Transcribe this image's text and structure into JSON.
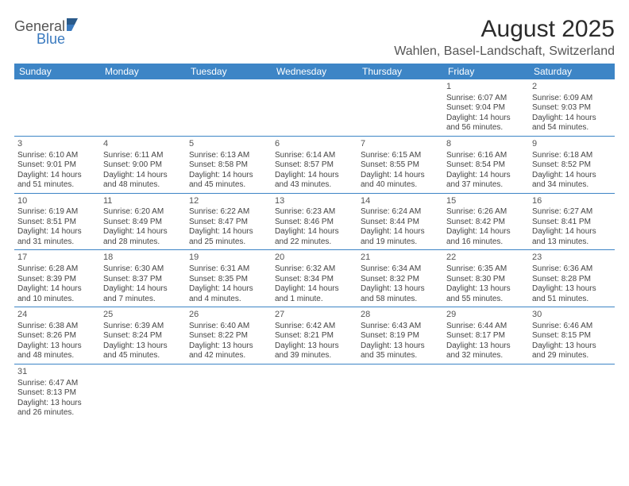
{
  "brand": {
    "general": "General",
    "blue": "Blue"
  },
  "title": "August 2025",
  "location": "Wahlen, Basel-Landschaft, Switzerland",
  "colors": {
    "header_bg": "#3d85c6",
    "header_text": "#ffffff",
    "rule": "#3d85c6",
    "text": "#444444",
    "title": "#2b2b2b",
    "logo_blue": "#3a7abf",
    "logo_dark": "#2a5a8a"
  },
  "calendar": {
    "type": "table",
    "day_headers": [
      "Sunday",
      "Monday",
      "Tuesday",
      "Wednesday",
      "Thursday",
      "Friday",
      "Saturday"
    ],
    "weeks": [
      [
        {
          "day": "",
          "lines": [
            "",
            "",
            "",
            ""
          ]
        },
        {
          "day": "",
          "lines": [
            "",
            "",
            "",
            ""
          ]
        },
        {
          "day": "",
          "lines": [
            "",
            "",
            "",
            ""
          ]
        },
        {
          "day": "",
          "lines": [
            "",
            "",
            "",
            ""
          ]
        },
        {
          "day": "",
          "lines": [
            "",
            "",
            "",
            ""
          ]
        },
        {
          "day": "1",
          "lines": [
            "Sunrise: 6:07 AM",
            "Sunset: 9:04 PM",
            "Daylight: 14 hours",
            "and 56 minutes."
          ]
        },
        {
          "day": "2",
          "lines": [
            "Sunrise: 6:09 AM",
            "Sunset: 9:03 PM",
            "Daylight: 14 hours",
            "and 54 minutes."
          ]
        }
      ],
      [
        {
          "day": "3",
          "lines": [
            "Sunrise: 6:10 AM",
            "Sunset: 9:01 PM",
            "Daylight: 14 hours",
            "and 51 minutes."
          ]
        },
        {
          "day": "4",
          "lines": [
            "Sunrise: 6:11 AM",
            "Sunset: 9:00 PM",
            "Daylight: 14 hours",
            "and 48 minutes."
          ]
        },
        {
          "day": "5",
          "lines": [
            "Sunrise: 6:13 AM",
            "Sunset: 8:58 PM",
            "Daylight: 14 hours",
            "and 45 minutes."
          ]
        },
        {
          "day": "6",
          "lines": [
            "Sunrise: 6:14 AM",
            "Sunset: 8:57 PM",
            "Daylight: 14 hours",
            "and 43 minutes."
          ]
        },
        {
          "day": "7",
          "lines": [
            "Sunrise: 6:15 AM",
            "Sunset: 8:55 PM",
            "Daylight: 14 hours",
            "and 40 minutes."
          ]
        },
        {
          "day": "8",
          "lines": [
            "Sunrise: 6:16 AM",
            "Sunset: 8:54 PM",
            "Daylight: 14 hours",
            "and 37 minutes."
          ]
        },
        {
          "day": "9",
          "lines": [
            "Sunrise: 6:18 AM",
            "Sunset: 8:52 PM",
            "Daylight: 14 hours",
            "and 34 minutes."
          ]
        }
      ],
      [
        {
          "day": "10",
          "lines": [
            "Sunrise: 6:19 AM",
            "Sunset: 8:51 PM",
            "Daylight: 14 hours",
            "and 31 minutes."
          ]
        },
        {
          "day": "11",
          "lines": [
            "Sunrise: 6:20 AM",
            "Sunset: 8:49 PM",
            "Daylight: 14 hours",
            "and 28 minutes."
          ]
        },
        {
          "day": "12",
          "lines": [
            "Sunrise: 6:22 AM",
            "Sunset: 8:47 PM",
            "Daylight: 14 hours",
            "and 25 minutes."
          ]
        },
        {
          "day": "13",
          "lines": [
            "Sunrise: 6:23 AM",
            "Sunset: 8:46 PM",
            "Daylight: 14 hours",
            "and 22 minutes."
          ]
        },
        {
          "day": "14",
          "lines": [
            "Sunrise: 6:24 AM",
            "Sunset: 8:44 PM",
            "Daylight: 14 hours",
            "and 19 minutes."
          ]
        },
        {
          "day": "15",
          "lines": [
            "Sunrise: 6:26 AM",
            "Sunset: 8:42 PM",
            "Daylight: 14 hours",
            "and 16 minutes."
          ]
        },
        {
          "day": "16",
          "lines": [
            "Sunrise: 6:27 AM",
            "Sunset: 8:41 PM",
            "Daylight: 14 hours",
            "and 13 minutes."
          ]
        }
      ],
      [
        {
          "day": "17",
          "lines": [
            "Sunrise: 6:28 AM",
            "Sunset: 8:39 PM",
            "Daylight: 14 hours",
            "and 10 minutes."
          ]
        },
        {
          "day": "18",
          "lines": [
            "Sunrise: 6:30 AM",
            "Sunset: 8:37 PM",
            "Daylight: 14 hours",
            "and 7 minutes."
          ]
        },
        {
          "day": "19",
          "lines": [
            "Sunrise: 6:31 AM",
            "Sunset: 8:35 PM",
            "Daylight: 14 hours",
            "and 4 minutes."
          ]
        },
        {
          "day": "20",
          "lines": [
            "Sunrise: 6:32 AM",
            "Sunset: 8:34 PM",
            "Daylight: 14 hours",
            "and 1 minute."
          ]
        },
        {
          "day": "21",
          "lines": [
            "Sunrise: 6:34 AM",
            "Sunset: 8:32 PM",
            "Daylight: 13 hours",
            "and 58 minutes."
          ]
        },
        {
          "day": "22",
          "lines": [
            "Sunrise: 6:35 AM",
            "Sunset: 8:30 PM",
            "Daylight: 13 hours",
            "and 55 minutes."
          ]
        },
        {
          "day": "23",
          "lines": [
            "Sunrise: 6:36 AM",
            "Sunset: 8:28 PM",
            "Daylight: 13 hours",
            "and 51 minutes."
          ]
        }
      ],
      [
        {
          "day": "24",
          "lines": [
            "Sunrise: 6:38 AM",
            "Sunset: 8:26 PM",
            "Daylight: 13 hours",
            "and 48 minutes."
          ]
        },
        {
          "day": "25",
          "lines": [
            "Sunrise: 6:39 AM",
            "Sunset: 8:24 PM",
            "Daylight: 13 hours",
            "and 45 minutes."
          ]
        },
        {
          "day": "26",
          "lines": [
            "Sunrise: 6:40 AM",
            "Sunset: 8:22 PM",
            "Daylight: 13 hours",
            "and 42 minutes."
          ]
        },
        {
          "day": "27",
          "lines": [
            "Sunrise: 6:42 AM",
            "Sunset: 8:21 PM",
            "Daylight: 13 hours",
            "and 39 minutes."
          ]
        },
        {
          "day": "28",
          "lines": [
            "Sunrise: 6:43 AM",
            "Sunset: 8:19 PM",
            "Daylight: 13 hours",
            "and 35 minutes."
          ]
        },
        {
          "day": "29",
          "lines": [
            "Sunrise: 6:44 AM",
            "Sunset: 8:17 PM",
            "Daylight: 13 hours",
            "and 32 minutes."
          ]
        },
        {
          "day": "30",
          "lines": [
            "Sunrise: 6:46 AM",
            "Sunset: 8:15 PM",
            "Daylight: 13 hours",
            "and 29 minutes."
          ]
        }
      ],
      [
        {
          "day": "31",
          "lines": [
            "Sunrise: 6:47 AM",
            "Sunset: 8:13 PM",
            "Daylight: 13 hours",
            "and 26 minutes."
          ]
        },
        {
          "day": "",
          "lines": [
            "",
            "",
            "",
            ""
          ]
        },
        {
          "day": "",
          "lines": [
            "",
            "",
            "",
            ""
          ]
        },
        {
          "day": "",
          "lines": [
            "",
            "",
            "",
            ""
          ]
        },
        {
          "day": "",
          "lines": [
            "",
            "",
            "",
            ""
          ]
        },
        {
          "day": "",
          "lines": [
            "",
            "",
            "",
            ""
          ]
        },
        {
          "day": "",
          "lines": [
            "",
            "",
            "",
            ""
          ]
        }
      ]
    ]
  }
}
